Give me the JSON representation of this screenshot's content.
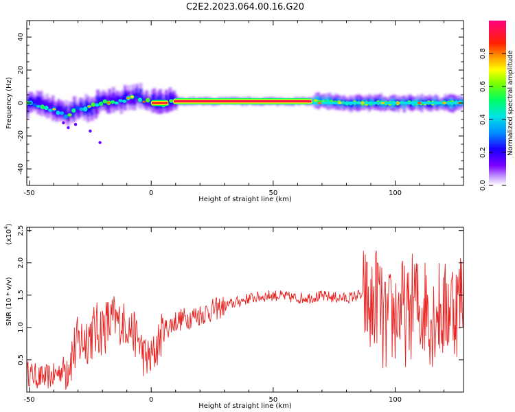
{
  "figure_title": "C2E2.2023.064.00.16.G20",
  "chart_data": [
    {
      "type": "heatmap",
      "xlabel": "Height of straight line (km)",
      "ylabel": "Frequency (Hz)",
      "xlim": [
        -51,
        128
      ],
      "ylim": [
        -50,
        50
      ],
      "x_ticks": [
        -50,
        0,
        50,
        100
      ],
      "y_ticks": [
        -40,
        -20,
        0,
        20,
        40
      ],
      "colorbar": {
        "label": "Normalized spectral amplitude",
        "range": [
          0,
          1
        ],
        "ticks": [
          "0.0",
          "0.2",
          "0.4",
          "0.6",
          "0.8"
        ]
      },
      "ridge": {
        "x": [
          -51,
          -45,
          -40,
          -35,
          -30,
          -25,
          -20,
          -15,
          -10,
          -6,
          -3,
          0,
          5,
          9,
          20,
          40,
          60,
          70,
          80,
          90,
          100,
          110,
          120,
          128
        ],
        "y": [
          0,
          -2,
          -4,
          -7,
          -4,
          -2,
          0,
          1,
          2,
          4,
          2,
          0,
          0,
          1,
          1,
          1,
          1,
          1,
          0,
          0,
          0,
          0,
          0,
          0
        ]
      },
      "scatter_points": [
        {
          "x": -36,
          "y": -12
        },
        {
          "x": -31,
          "y": -13
        },
        {
          "x": -25,
          "y": -17
        },
        {
          "x": -21,
          "y": -24
        },
        {
          "x": -34,
          "y": -15
        }
      ],
      "bands": [
        {
          "x_start": 0,
          "x_end": 7,
          "y": 0,
          "level": 0.9
        },
        {
          "x_start": 9,
          "x_end": 66,
          "y": 1,
          "level": 0.95
        },
        {
          "x_start": 66,
          "x_end": 128,
          "y": 0,
          "level": 0.55
        }
      ]
    },
    {
      "type": "line",
      "xlabel": "Height of straight line (km)",
      "ylabel": "SNR (10 * v/v)",
      "scale_note": "(x10",
      "scale_exponent": "4",
      "xlim": [
        -51,
        128
      ],
      "ylim": [
        0,
        2.55
      ],
      "x_ticks": [
        -50,
        0,
        50,
        100
      ],
      "y_ticks": [
        0.5,
        1.0,
        1.5,
        2.0,
        2.5
      ],
      "color": "#e8201e",
      "series": [
        {
          "x": [
            -51,
            -45,
            -40,
            -35,
            -30,
            -25,
            -20,
            -15,
            -10,
            -5,
            -3,
            0,
            5,
            10,
            20,
            30,
            40,
            50,
            60,
            70,
            80,
            85,
            88,
            90,
            93,
            95,
            100,
            103,
            105,
            108,
            110,
            113,
            115,
            117,
            120,
            123,
            125,
            128
          ],
          "y": [
            0.3,
            0.22,
            0.25,
            0.4,
            0.75,
            0.9,
            1.0,
            1.1,
            1.05,
            0.8,
            0.55,
            0.5,
            0.95,
            1.1,
            1.2,
            1.33,
            1.45,
            1.5,
            1.45,
            1.48,
            1.45,
            1.5,
            1.45,
            1.2,
            1.6,
            1.0,
            1.2,
            1.3,
            1.1,
            1.5,
            1.2,
            1.4,
            1.1,
            1.3,
            1.2,
            1.4,
            1.3,
            1.6
          ]
        }
      ]
    }
  ]
}
